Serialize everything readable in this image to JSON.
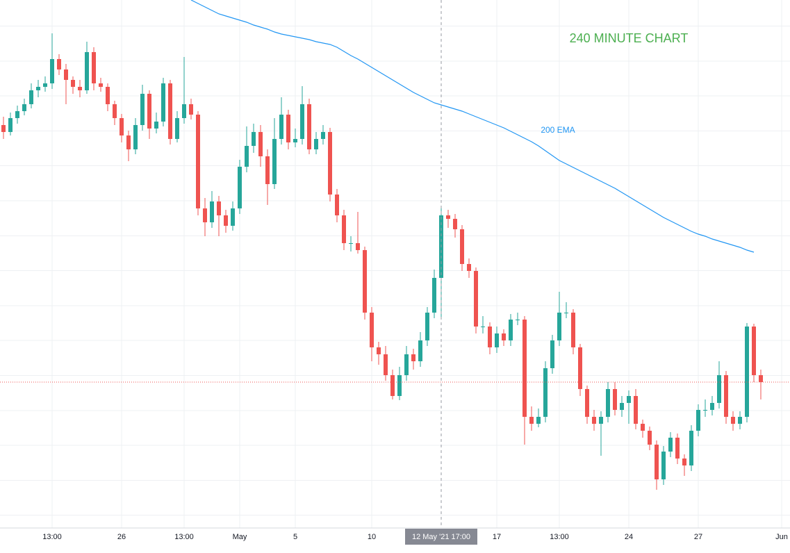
{
  "chart_data": {
    "type": "candlestick",
    "title": "240 MINUTE CHART",
    "up_color": "#26a69a",
    "down_color": "#ef5350",
    "ylim": [
      0,
      760
    ],
    "grid": true,
    "categories": [
      null,
      null,
      null,
      null,
      null,
      null,
      null,
      "13:00",
      null,
      null,
      null,
      null,
      null,
      null,
      null,
      null,
      null,
      "26",
      null,
      null,
      null,
      null,
      null,
      null,
      null,
      null,
      "13:00",
      null,
      null,
      null,
      null,
      null,
      null,
      null,
      "May",
      null,
      null,
      null,
      null,
      null,
      null,
      null,
      "5",
      null,
      null,
      null,
      null,
      null,
      null,
      null,
      null,
      null,
      null,
      "10",
      null,
      null,
      null,
      null,
      null,
      null,
      null,
      null,
      null,
      null,
      null,
      null,
      null,
      null,
      null,
      null,
      null,
      "17",
      null,
      null,
      null,
      null,
      null,
      null,
      null,
      null,
      "13:00",
      null,
      null,
      null,
      null,
      null,
      null,
      null,
      null,
      null,
      "24",
      null,
      null,
      null,
      null,
      null,
      null,
      null,
      null,
      null,
      "27",
      null,
      null,
      null,
      null,
      null,
      null,
      null,
      null,
      null,
      null,
      null,
      "Jun"
    ],
    "candles": [
      [
        580,
        592,
        560,
        570
      ],
      [
        570,
        598,
        565,
        590
      ],
      [
        590,
        608,
        582,
        600
      ],
      [
        600,
        618,
        594,
        610
      ],
      [
        610,
        640,
        604,
        630
      ],
      [
        630,
        645,
        620,
        635
      ],
      [
        635,
        650,
        628,
        640
      ],
      [
        640,
        712,
        632,
        675
      ],
      [
        675,
        682,
        652,
        660
      ],
      [
        660,
        668,
        610,
        645
      ],
      [
        645,
        650,
        625,
        635
      ],
      [
        635,
        645,
        620,
        630
      ],
      [
        630,
        700,
        625,
        685
      ],
      [
        685,
        692,
        630,
        640
      ],
      [
        640,
        648,
        628,
        635
      ],
      [
        635,
        640,
        600,
        610
      ],
      [
        610,
        615,
        580,
        590
      ],
      [
        590,
        596,
        555,
        565
      ],
      [
        565,
        572,
        528,
        545
      ],
      [
        545,
        590,
        538,
        580
      ],
      [
        580,
        638,
        572,
        625
      ],
      [
        625,
        630,
        560,
        575
      ],
      [
        575,
        598,
        568,
        585
      ],
      [
        585,
        648,
        578,
        640
      ],
      [
        640,
        645,
        552,
        560
      ],
      [
        560,
        600,
        555,
        590
      ],
      [
        590,
        678,
        582,
        610
      ],
      [
        610,
        618,
        588,
        595
      ],
      [
        595,
        600,
        450,
        460
      ],
      [
        460,
        475,
        420,
        440
      ],
      [
        440,
        485,
        432,
        470
      ],
      [
        470,
        478,
        420,
        450
      ],
      [
        450,
        458,
        425,
        435
      ],
      [
        435,
        470,
        428,
        460
      ],
      [
        460,
        530,
        452,
        520
      ],
      [
        520,
        578,
        512,
        550
      ],
      [
        550,
        582,
        540,
        570
      ],
      [
        570,
        580,
        520,
        535
      ],
      [
        535,
        545,
        465,
        495
      ],
      [
        495,
        590,
        488,
        560
      ],
      [
        560,
        620,
        552,
        595
      ],
      [
        595,
        602,
        545,
        555
      ],
      [
        555,
        575,
        548,
        560
      ],
      [
        560,
        636,
        552,
        610
      ],
      [
        610,
        618,
        538,
        545
      ],
      [
        545,
        570,
        538,
        560
      ],
      [
        560,
        580,
        552,
        570
      ],
      [
        570,
        576,
        470,
        480
      ],
      [
        480,
        488,
        440,
        450
      ],
      [
        450,
        458,
        400,
        410
      ],
      [
        410,
        420,
        398,
        410
      ],
      [
        410,
        455,
        395,
        400
      ],
      [
        400,
        405,
        300,
        310
      ],
      [
        310,
        318,
        240,
        260
      ],
      [
        260,
        268,
        235,
        250
      ],
      [
        250,
        262,
        212,
        220
      ],
      [
        220,
        228,
        185,
        190
      ],
      [
        190,
        232,
        184,
        220
      ],
      [
        220,
        262,
        212,
        250
      ],
      [
        250,
        258,
        228,
        240
      ],
      [
        240,
        282,
        232,
        270
      ],
      [
        270,
        318,
        262,
        310
      ],
      [
        310,
        372,
        302,
        360
      ],
      [
        360,
        460,
        300,
        450
      ],
      [
        450,
        458,
        432,
        445
      ],
      [
        445,
        452,
        418,
        430
      ],
      [
        430,
        436,
        370,
        380
      ],
      [
        380,
        388,
        360,
        370
      ],
      [
        370,
        375,
        280,
        290
      ],
      [
        290,
        305,
        280,
        290
      ],
      [
        290,
        296,
        250,
        260
      ],
      [
        260,
        290,
        252,
        280
      ],
      [
        280,
        286,
        262,
        270
      ],
      [
        270,
        308,
        262,
        300
      ],
      [
        300,
        310,
        292,
        300
      ],
      [
        300,
        305,
        120,
        160
      ],
      [
        160,
        175,
        140,
        150
      ],
      [
        150,
        172,
        145,
        160
      ],
      [
        160,
        240,
        152,
        230
      ],
      [
        230,
        278,
        222,
        270
      ],
      [
        270,
        340,
        262,
        310
      ],
      [
        310,
        325,
        302,
        310
      ],
      [
        310,
        315,
        250,
        260
      ],
      [
        260,
        265,
        190,
        200
      ],
      [
        200,
        205,
        150,
        160
      ],
      [
        160,
        170,
        140,
        150
      ],
      [
        150,
        168,
        104,
        160
      ],
      [
        160,
        210,
        152,
        200
      ],
      [
        200,
        210,
        162,
        170
      ],
      [
        170,
        190,
        160,
        180
      ],
      [
        180,
        198,
        150,
        190
      ],
      [
        190,
        200,
        142,
        150
      ],
      [
        150,
        156,
        130,
        140
      ],
      [
        140,
        146,
        112,
        120
      ],
      [
        120,
        126,
        55,
        70
      ],
      [
        70,
        118,
        62,
        110
      ],
      [
        110,
        138,
        102,
        130
      ],
      [
        130,
        136,
        92,
        100
      ],
      [
        100,
        106,
        75,
        90
      ],
      [
        90,
        148,
        82,
        140
      ],
      [
        140,
        178,
        132,
        170
      ],
      [
        170,
        185,
        160,
        170
      ],
      [
        170,
        190,
        162,
        180
      ],
      [
        180,
        240,
        172,
        220
      ],
      [
        220,
        226,
        150,
        160
      ],
      [
        160,
        168,
        140,
        150
      ],
      [
        150,
        168,
        142,
        160
      ],
      [
        160,
        295,
        152,
        290
      ],
      [
        290,
        294,
        210,
        220
      ],
      [
        220,
        228,
        185,
        210
      ],
      null,
      null,
      null
    ],
    "ema": {
      "name": "200 EMA",
      "color": "#2196f3",
      "values": [
        null,
        null,
        null,
        null,
        null,
        null,
        null,
        null,
        null,
        null,
        null,
        null,
        null,
        null,
        null,
        null,
        null,
        null,
        null,
        null,
        null,
        null,
        null,
        null,
        null,
        null,
        null,
        760,
        755,
        750,
        745,
        740,
        737,
        734,
        731,
        728,
        724,
        721,
        718,
        714,
        711,
        709,
        707,
        705,
        703,
        700,
        698,
        696,
        692,
        686,
        680,
        675,
        669,
        663,
        657,
        651,
        645,
        639,
        633,
        627,
        622,
        617,
        612,
        609,
        606,
        603,
        600,
        596,
        592,
        588,
        584,
        580,
        576,
        571,
        566,
        561,
        556,
        550,
        543,
        536,
        529,
        524,
        519,
        514,
        509,
        504,
        499,
        494,
        489,
        483,
        477,
        471,
        465,
        459,
        453,
        447,
        442,
        437,
        432,
        427,
        423,
        420,
        416,
        413,
        410,
        407,
        404,
        400,
        397,
        null,
        null,
        null,
        null
      ]
    },
    "crosshair": {
      "index": 63,
      "label": "12 May '21 17:00"
    }
  }
}
